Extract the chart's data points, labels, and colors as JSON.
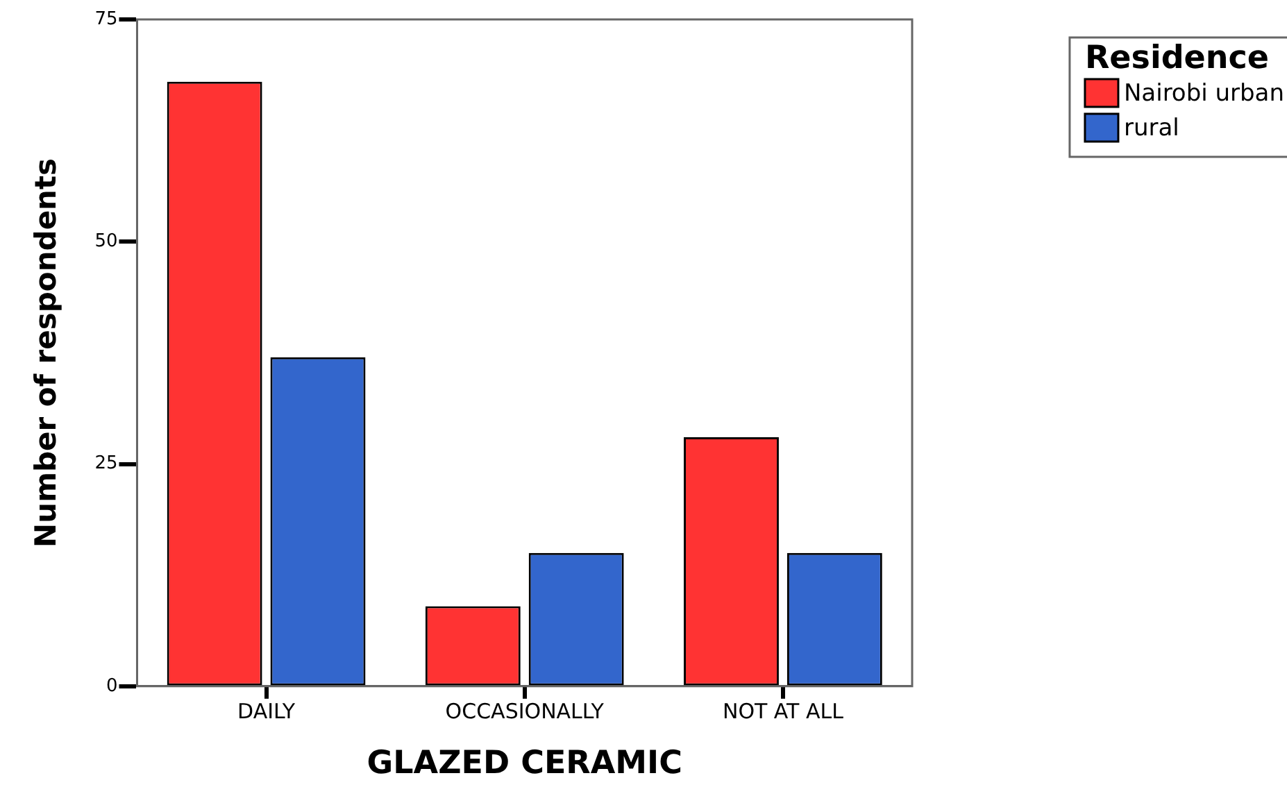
{
  "chart_data": {
    "type": "bar",
    "xlabel": "GLAZED CERAMIC",
    "ylabel": "Number of respondents",
    "legend_title": "Residence",
    "categories": [
      "DAILY",
      "OCCASIONALLY",
      "NOT AT ALL"
    ],
    "series": [
      {
        "name": "Nairobi urban",
        "color": "#ff3333",
        "values": [
          68,
          9,
          28
        ]
      },
      {
        "name": "rural",
        "color": "#3366cc",
        "values": [
          37,
          15,
          15
        ]
      }
    ],
    "ylim": [
      0,
      75
    ],
    "yticks": [
      0,
      25,
      50,
      75
    ],
    "legend": "top right"
  }
}
